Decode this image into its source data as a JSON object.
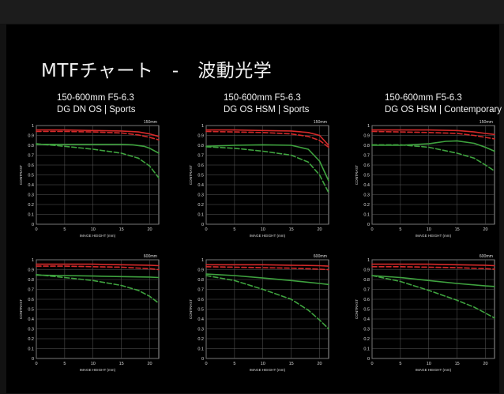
{
  "slide": {
    "title": "MTFチャート　-　波動光学"
  },
  "lens_titles": [
    {
      "line1": "150-600mm F5-6.3",
      "line2": "DG DN OS | Sports"
    },
    {
      "line1": "150-600mm F5-6.3",
      "line2": "DG OS HSM | Sports"
    },
    {
      "line1": "150-600mm F5-6.3",
      "line2": "DG OS HSM | Contemporary"
    }
  ],
  "chart_data": [
    {
      "type": "line",
      "panel": "150-600mm F5-6.3 DG DN OS | Sports — 150mm",
      "focal_label": "150mm",
      "xlabel": "IMAGE HEIGHT (mm)",
      "ylabel": "CONTRAST",
      "xlim": [
        0,
        21.6
      ],
      "ylim": [
        0,
        1
      ],
      "xticks": [
        0,
        5,
        10,
        15,
        20
      ],
      "yticks": [
        0,
        0.1,
        0.2,
        0.3,
        0.4,
        0.5,
        0.6,
        0.7,
        0.8,
        0.9,
        1
      ],
      "grid": true,
      "series": [
        {
          "color": "#d42a2a",
          "style": "solid",
          "x": [
            0,
            5,
            10,
            15,
            18,
            20,
            21.6
          ],
          "y": [
            0.955,
            0.955,
            0.95,
            0.945,
            0.935,
            0.915,
            0.89
          ]
        },
        {
          "color": "#d42a2a",
          "style": "dashed",
          "x": [
            0,
            5,
            10,
            15,
            18,
            20,
            21.6
          ],
          "y": [
            0.94,
            0.94,
            0.935,
            0.925,
            0.905,
            0.88,
            0.855
          ]
        },
        {
          "color": "#3fa33f",
          "style": "solid",
          "x": [
            0,
            5,
            10,
            15,
            17,
            19,
            20,
            21.6
          ],
          "y": [
            0.81,
            0.81,
            0.81,
            0.81,
            0.805,
            0.79,
            0.77,
            0.72
          ]
        },
        {
          "color": "#3fa33f",
          "style": "dashed",
          "x": [
            0,
            5,
            10,
            15,
            18,
            20,
            21.6
          ],
          "y": [
            0.815,
            0.79,
            0.76,
            0.72,
            0.67,
            0.59,
            0.47
          ]
        }
      ]
    },
    {
      "type": "line",
      "panel": "150-600mm F5-6.3 DG OS HSM | Sports — 150mm",
      "focal_label": "150mm",
      "xlabel": "IMAGE HEIGHT (mm)",
      "ylabel": "CONTRAST",
      "xlim": [
        0,
        21.6
      ],
      "ylim": [
        0,
        1
      ],
      "xticks": [
        0,
        5,
        10,
        15,
        20
      ],
      "yticks": [
        0,
        0.1,
        0.2,
        0.3,
        0.4,
        0.5,
        0.6,
        0.7,
        0.8,
        0.9,
        1
      ],
      "grid": true,
      "series": [
        {
          "color": "#d42a2a",
          "style": "solid",
          "x": [
            0,
            5,
            10,
            15,
            18,
            20,
            21.6
          ],
          "y": [
            0.955,
            0.955,
            0.95,
            0.945,
            0.93,
            0.9,
            0.8
          ]
        },
        {
          "color": "#d42a2a",
          "style": "dashed",
          "x": [
            0,
            5,
            10,
            15,
            18,
            20,
            21.6
          ],
          "y": [
            0.94,
            0.935,
            0.93,
            0.915,
            0.89,
            0.85,
            0.78
          ]
        },
        {
          "color": "#3fa33f",
          "style": "solid",
          "x": [
            0,
            5,
            10,
            15,
            18,
            20,
            21.6
          ],
          "y": [
            0.79,
            0.8,
            0.805,
            0.8,
            0.76,
            0.64,
            0.44
          ]
        },
        {
          "color": "#3fa33f",
          "style": "dashed",
          "x": [
            0,
            5,
            10,
            15,
            18,
            20,
            21.6
          ],
          "y": [
            0.785,
            0.77,
            0.74,
            0.7,
            0.63,
            0.5,
            0.32
          ]
        }
      ]
    },
    {
      "type": "line",
      "panel": "150-600mm F5-6.3 DG OS HSM | Contemporary — 150mm",
      "focal_label": "150mm",
      "xlabel": "IMAGE HEIGHT (mm)",
      "ylabel": "CONTRAST",
      "xlim": [
        0,
        21.6
      ],
      "ylim": [
        0,
        1
      ],
      "xticks": [
        0,
        5,
        10,
        15,
        20
      ],
      "yticks": [
        0,
        0.1,
        0.2,
        0.3,
        0.4,
        0.5,
        0.6,
        0.7,
        0.8,
        0.9,
        1
      ],
      "grid": true,
      "series": [
        {
          "color": "#d42a2a",
          "style": "solid",
          "x": [
            0,
            5,
            10,
            15,
            18,
            20,
            21.6
          ],
          "y": [
            0.955,
            0.955,
            0.955,
            0.95,
            0.935,
            0.92,
            0.91
          ]
        },
        {
          "color": "#d42a2a",
          "style": "dashed",
          "x": [
            0,
            5,
            10,
            15,
            18,
            20,
            21.6
          ],
          "y": [
            0.94,
            0.935,
            0.93,
            0.92,
            0.9,
            0.88,
            0.865
          ]
        },
        {
          "color": "#3fa33f",
          "style": "solid",
          "x": [
            0,
            5,
            10,
            13,
            15,
            18,
            20,
            21.6
          ],
          "y": [
            0.8,
            0.8,
            0.815,
            0.84,
            0.845,
            0.82,
            0.78,
            0.74
          ]
        },
        {
          "color": "#3fa33f",
          "style": "dashed",
          "x": [
            0,
            5,
            10,
            15,
            18,
            20,
            21.6
          ],
          "y": [
            0.805,
            0.805,
            0.78,
            0.72,
            0.67,
            0.6,
            0.54
          ]
        }
      ]
    },
    {
      "type": "line",
      "panel": "150-600mm F5-6.3 DG DN OS | Sports — 600mm",
      "focal_label": "600mm",
      "xlabel": "IMAGE HEIGHT (mm)",
      "ylabel": "CONTRAST",
      "xlim": [
        0,
        21.6
      ],
      "ylim": [
        0,
        1
      ],
      "xticks": [
        0,
        5,
        10,
        15,
        20
      ],
      "yticks": [
        0,
        0.1,
        0.2,
        0.3,
        0.4,
        0.5,
        0.6,
        0.7,
        0.8,
        0.9,
        1
      ],
      "grid": true,
      "series": [
        {
          "color": "#d42a2a",
          "style": "solid",
          "x": [
            0,
            5,
            10,
            15,
            20,
            21.6
          ],
          "y": [
            0.955,
            0.955,
            0.955,
            0.95,
            0.945,
            0.94
          ]
        },
        {
          "color": "#d42a2a",
          "style": "dashed",
          "x": [
            0,
            5,
            10,
            15,
            20,
            21.6
          ],
          "y": [
            0.935,
            0.935,
            0.93,
            0.925,
            0.91,
            0.9
          ]
        },
        {
          "color": "#3fa33f",
          "style": "solid",
          "x": [
            0,
            5,
            10,
            15,
            20,
            21.6
          ],
          "y": [
            0.845,
            0.84,
            0.835,
            0.83,
            0.825,
            0.82
          ]
        },
        {
          "color": "#3fa33f",
          "style": "dashed",
          "x": [
            0,
            5,
            10,
            15,
            18,
            20,
            21.6
          ],
          "y": [
            0.85,
            0.82,
            0.79,
            0.74,
            0.69,
            0.63,
            0.56
          ]
        }
      ]
    },
    {
      "type": "line",
      "panel": "150-600mm F5-6.3 DG OS HSM | Sports — 600mm",
      "focal_label": "600mm",
      "xlabel": "IMAGE HEIGHT (mm)",
      "ylabel": "CONTRAST",
      "xlim": [
        0,
        21.6
      ],
      "ylim": [
        0,
        1
      ],
      "xticks": [
        0,
        5,
        10,
        15,
        20
      ],
      "yticks": [
        0,
        0.1,
        0.2,
        0.3,
        0.4,
        0.5,
        0.6,
        0.7,
        0.8,
        0.9,
        1
      ],
      "grid": true,
      "series": [
        {
          "color": "#d42a2a",
          "style": "solid",
          "x": [
            0,
            5,
            10,
            15,
            20,
            21.6
          ],
          "y": [
            0.95,
            0.95,
            0.95,
            0.945,
            0.94,
            0.935
          ]
        },
        {
          "color": "#d42a2a",
          "style": "dashed",
          "x": [
            0,
            5,
            10,
            15,
            20,
            21.6
          ],
          "y": [
            0.93,
            0.925,
            0.92,
            0.915,
            0.905,
            0.9
          ]
        },
        {
          "color": "#3fa33f",
          "style": "solid",
          "x": [
            0,
            5,
            10,
            15,
            20,
            21.6
          ],
          "y": [
            0.855,
            0.84,
            0.815,
            0.79,
            0.76,
            0.75
          ]
        },
        {
          "color": "#3fa33f",
          "style": "dashed",
          "x": [
            0,
            5,
            10,
            15,
            18,
            20,
            21.6
          ],
          "y": [
            0.84,
            0.79,
            0.7,
            0.6,
            0.49,
            0.39,
            0.3
          ]
        }
      ]
    },
    {
      "type": "line",
      "panel": "150-600mm F5-6.3 DG OS HSM | Contemporary — 600mm",
      "focal_label": "600mm",
      "xlabel": "IMAGE HEIGHT (mm)",
      "ylabel": "CONTRAST",
      "xlim": [
        0,
        21.6
      ],
      "ylim": [
        0,
        1
      ],
      "xticks": [
        0,
        5,
        10,
        15,
        20
      ],
      "yticks": [
        0,
        0.1,
        0.2,
        0.3,
        0.4,
        0.5,
        0.6,
        0.7,
        0.8,
        0.9,
        1
      ],
      "grid": true,
      "series": [
        {
          "color": "#d42a2a",
          "style": "solid",
          "x": [
            0,
            5,
            10,
            15,
            20,
            21.6
          ],
          "y": [
            0.955,
            0.955,
            0.955,
            0.95,
            0.945,
            0.94
          ]
        },
        {
          "color": "#d42a2a",
          "style": "dashed",
          "x": [
            0,
            5,
            10,
            15,
            20,
            21.6
          ],
          "y": [
            0.93,
            0.93,
            0.925,
            0.92,
            0.91,
            0.905
          ]
        },
        {
          "color": "#3fa33f",
          "style": "solid",
          "x": [
            0,
            5,
            10,
            15,
            20,
            21.6
          ],
          "y": [
            0.84,
            0.82,
            0.79,
            0.76,
            0.735,
            0.73
          ]
        },
        {
          "color": "#3fa33f",
          "style": "dashed",
          "x": [
            0,
            5,
            10,
            15,
            18,
            20,
            21.6
          ],
          "y": [
            0.84,
            0.78,
            0.69,
            0.59,
            0.52,
            0.46,
            0.41
          ]
        }
      ]
    }
  ]
}
